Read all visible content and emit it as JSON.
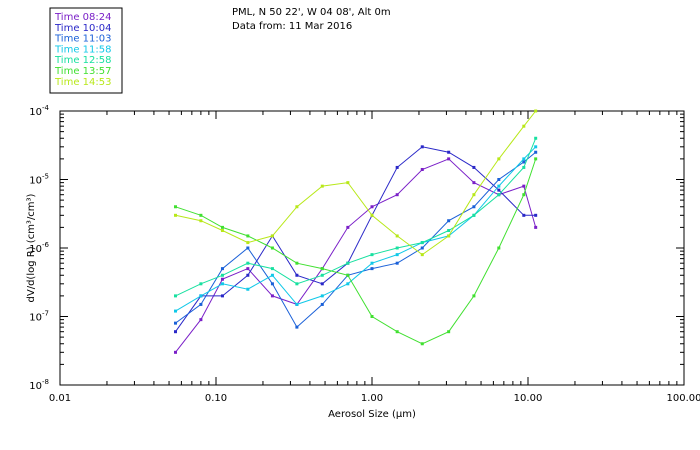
{
  "header": {
    "location": "PML, N 50 22', W 04 08', Alt 0m",
    "date_line": "Data from: 11 Mar 2016"
  },
  "chart_data": {
    "type": "line",
    "xscale": "log",
    "yscale": "log",
    "xlim": [
      0.01,
      100.0
    ],
    "ylim": [
      1e-08,
      0.0001
    ],
    "xlabel": "Aerosol Size (µm)",
    "ylabel": "dV/d(log R) (cm³/cm³)",
    "xticks": [
      {
        "value": 0.01,
        "label": "0.01"
      },
      {
        "value": 0.1,
        "label": "0.10"
      },
      {
        "value": 1.0,
        "label": "1.00"
      },
      {
        "value": 10.0,
        "label": "10.00"
      },
      {
        "value": 100.0,
        "label": "100.00"
      }
    ],
    "yticks": [
      {
        "value": 1e-08,
        "base": "10",
        "exp": "-8"
      },
      {
        "value": 1e-07,
        "base": "10",
        "exp": "-7"
      },
      {
        "value": 1e-06,
        "base": "10",
        "exp": "-6"
      },
      {
        "value": 1e-05,
        "base": "10",
        "exp": "-5"
      },
      {
        "value": 0.0001,
        "base": "10",
        "exp": "-4"
      }
    ],
    "x": [
      0.055,
      0.08,
      0.11,
      0.16,
      0.23,
      0.33,
      0.48,
      0.7,
      1.0,
      1.45,
      2.1,
      3.1,
      4.5,
      6.5,
      9.4,
      11.2
    ],
    "series": [
      {
        "name": "Time 08:24",
        "color": "#7a1fc8",
        "values": [
          3e-08,
          9e-08,
          3.5e-07,
          5e-07,
          2e-07,
          1.5e-07,
          5e-07,
          2e-06,
          4e-06,
          6e-06,
          1.4e-05,
          2e-05,
          9e-06,
          6e-06,
          8e-06,
          2e-06
        ]
      },
      {
        "name": "Time 10:04",
        "color": "#2a28c8",
        "values": [
          6e-08,
          2e-07,
          2e-07,
          4e-07,
          1.5e-06,
          4e-07,
          3e-07,
          6e-07,
          3e-06,
          1.5e-05,
          3e-05,
          2.5e-05,
          1.5e-05,
          7e-06,
          3e-06,
          3e-06
        ]
      },
      {
        "name": "Time 11:03",
        "color": "#1a60d8",
        "values": [
          8e-08,
          1.5e-07,
          5e-07,
          1e-06,
          3e-07,
          7e-08,
          1.5e-07,
          4e-07,
          5e-07,
          6e-07,
          1e-06,
          2.5e-06,
          4e-06,
          1e-05,
          1.8e-05,
          2.5e-05
        ]
      },
      {
        "name": "Time 11:58",
        "color": "#10c8e8",
        "values": [
          1.2e-07,
          2e-07,
          3e-07,
          2.5e-07,
          4e-07,
          1.5e-07,
          2e-07,
          3e-07,
          6e-07,
          8e-07,
          1.2e-06,
          1.5e-06,
          3e-06,
          8e-06,
          2e-05,
          3e-05
        ]
      },
      {
        "name": "Time 12:58",
        "color": "#18e0a0",
        "values": [
          2e-07,
          3e-07,
          4e-07,
          6e-07,
          5e-07,
          3e-07,
          4e-07,
          6e-07,
          8e-07,
          1e-06,
          1.2e-06,
          1.8e-06,
          3e-06,
          6e-06,
          1.5e-05,
          4e-05
        ]
      },
      {
        "name": "Time 13:57",
        "color": "#40e030",
        "values": [
          4e-06,
          3e-06,
          2e-06,
          1.5e-06,
          1e-06,
          6e-07,
          5e-07,
          4e-07,
          1e-07,
          6e-08,
          4e-08,
          6e-08,
          2e-07,
          1e-06,
          6e-06,
          2e-05
        ]
      },
      {
        "name": "Time 14:53",
        "color": "#b8e818",
        "values": [
          3e-06,
          2.5e-06,
          1.8e-06,
          1.2e-06,
          1.5e-06,
          4e-06,
          8e-06,
          9e-06,
          3e-06,
          1.5e-06,
          8e-07,
          1.5e-06,
          6e-06,
          2e-05,
          6e-05,
          0.0001
        ]
      }
    ]
  }
}
